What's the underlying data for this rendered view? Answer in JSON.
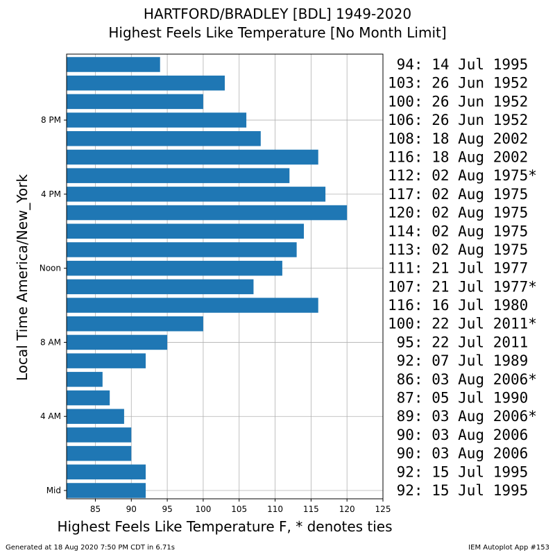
{
  "chart_data": {
    "type": "bar",
    "orientation": "horizontal",
    "title": "HARTFORD/BRADLEY [BDL] 1949-2020",
    "subtitle": "Highest Feels Like Temperature [No Month Limit]",
    "xlabel": "Highest Feels Like Temperature F, * denotes ties",
    "ylabel": "Local Time America/New_York",
    "xlim": [
      81,
      125
    ],
    "x_ticks": [
      85,
      90,
      95,
      100,
      105,
      110,
      115,
      120,
      125
    ],
    "y_ticks": [
      {
        "hour": 0,
        "label": "Mid"
      },
      {
        "hour": 4,
        "label": "4 AM"
      },
      {
        "hour": 8,
        "label": "8 AM"
      },
      {
        "hour": 12,
        "label": "Noon"
      },
      {
        "hour": 16,
        "label": "4 PM"
      },
      {
        "hour": 20,
        "label": "8 PM"
      }
    ],
    "grid": true,
    "bar_color": "#1f77b4",
    "hours": [
      0,
      1,
      2,
      3,
      4,
      5,
      6,
      7,
      8,
      9,
      10,
      11,
      12,
      13,
      14,
      15,
      16,
      17,
      18,
      19,
      20,
      21,
      22,
      23
    ],
    "values": [
      92,
      92,
      90,
      90,
      89,
      87,
      86,
      92,
      95,
      100,
      116,
      107,
      111,
      113,
      114,
      120,
      117,
      112,
      116,
      108,
      106,
      100,
      103,
      94
    ],
    "annotations": [
      "92: 15 Jul 1995",
      "92: 15 Jul 1995",
      "90: 03 Aug 2006",
      "90: 03 Aug 2006",
      "89: 03 Aug 2006*",
      "87: 05 Jul 1990",
      "86: 03 Aug 2006*",
      "92: 07 Jul 1989",
      "95: 22 Jul 2011",
      "100: 22 Jul 2011*",
      "116: 16 Jul 1980",
      "107: 21 Jul 1977*",
      "111: 21 Jul 1977",
      "113: 02 Aug 1975",
      "114: 02 Aug 1975",
      "120: 02 Aug 1975",
      "117: 02 Aug 1975",
      "112: 02 Aug 1975*",
      "116: 18 Aug 2002",
      "108: 18 Aug 2002",
      "106: 26 Jun 1952",
      "100: 26 Jun 1952",
      "103: 26 Jun 1952",
      "94: 14 Jul 1995"
    ]
  },
  "footer": {
    "left": "Generated at 18 Aug 2020 7:50 PM CDT in 6.71s",
    "right": "IEM Autoplot App #153"
  }
}
